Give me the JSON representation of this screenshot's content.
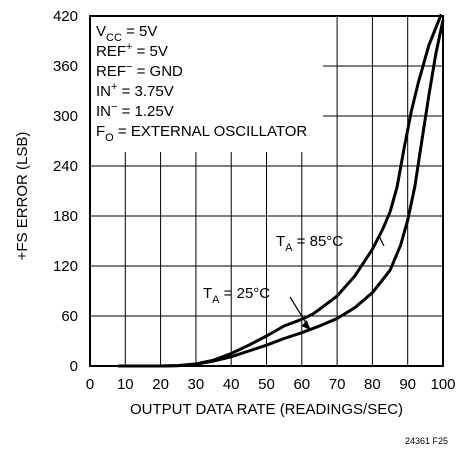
{
  "chart_data": {
    "type": "line",
    "title": "",
    "xlabel": "OUTPUT DATA RATE (READINGS/SEC)",
    "ylabel": "+FS ERROR (LSB)",
    "xlim": [
      0,
      100
    ],
    "ylim": [
      0,
      420
    ],
    "xticks": [
      "0",
      "10",
      "20",
      "30",
      "40",
      "50",
      "60",
      "70",
      "80",
      "90",
      "100"
    ],
    "yticks": [
      "0",
      "60",
      "120",
      "180",
      "240",
      "300",
      "360",
      "420"
    ],
    "grid": true,
    "conditions": [
      {
        "main": "V",
        "sub": "CC",
        "sup": "",
        "rest": " = 5V"
      },
      {
        "main": "REF",
        "sub": "",
        "sup": "+",
        "rest": " = 5V"
      },
      {
        "main": "REF",
        "sub": "",
        "sup": "−",
        "rest": " = GND"
      },
      {
        "main": "IN",
        "sub": "",
        "sup": "+",
        "rest": " = 3.75V"
      },
      {
        "main": "IN",
        "sub": "",
        "sup": "−",
        "rest": " = 1.25V"
      },
      {
        "main": "F",
        "sub": "O",
        "sup": "",
        "rest": " = EXTERNAL OSCILLATOR"
      }
    ],
    "series": [
      {
        "label_main": "T",
        "label_sub": "A",
        "label_rest": " = 85°C",
        "x": [
          8,
          20,
          25,
          30,
          35,
          40,
          45,
          50,
          55,
          60,
          63,
          65,
          70,
          75,
          80,
          83,
          85,
          87,
          89,
          91,
          93,
          96,
          99.5
        ],
        "y": [
          0,
          0,
          0.5,
          2.5,
          7,
          15,
          25,
          36,
          48,
          56,
          62,
          68,
          84,
          108,
          140,
          165,
          185,
          215,
          262,
          305,
          340,
          385,
          422
        ]
      },
      {
        "label_main": "T",
        "label_sub": "A",
        "label_rest": " = 25°C",
        "x": [
          8,
          20,
          25,
          30,
          35,
          40,
          45,
          50,
          55,
          60,
          65,
          70,
          75,
          80,
          85,
          88,
          90,
          92,
          94,
          96,
          98,
          100
        ],
        "y": [
          0,
          0,
          0.5,
          2,
          6,
          11,
          18,
          25,
          33,
          40,
          48,
          57,
          70,
          88,
          115,
          145,
          175,
          215,
          270,
          325,
          375,
          415
        ]
      }
    ],
    "figure_id": "24361 F25"
  }
}
